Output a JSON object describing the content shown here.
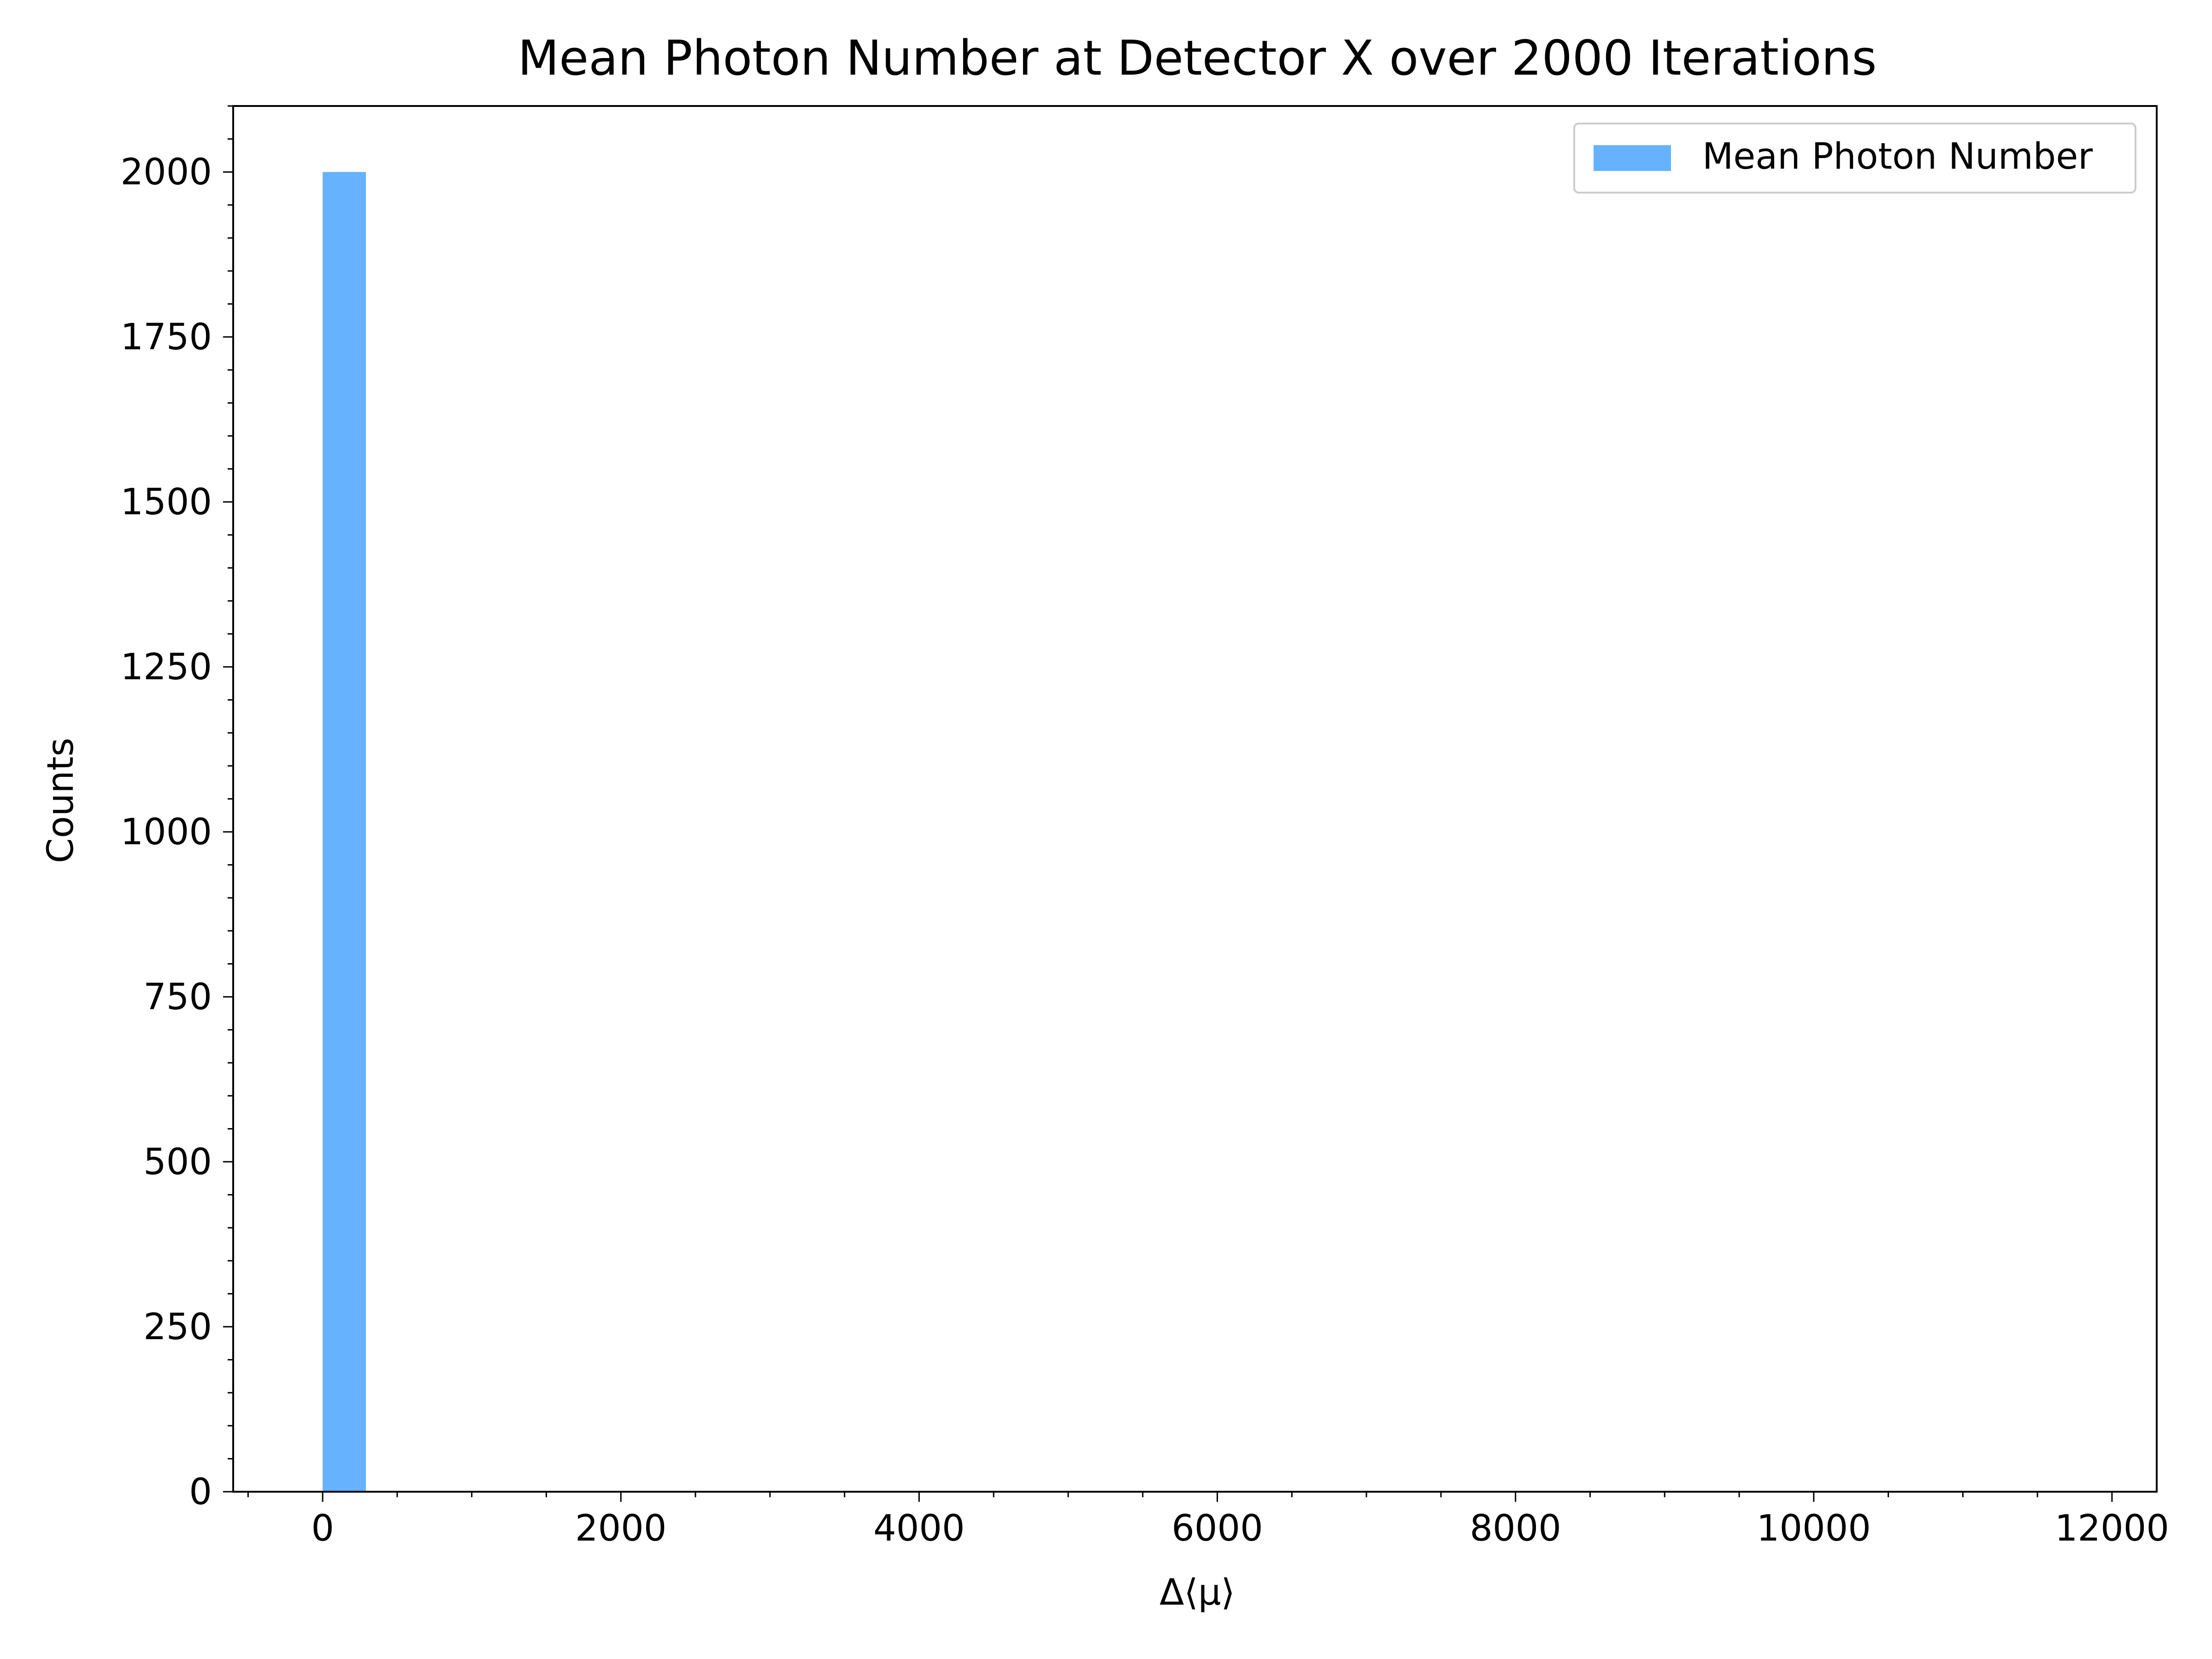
{
  "chart_data": {
    "type": "bar",
    "title": "Mean Photon Number at Detector X over 2000 Iterations",
    "xlabel": "Δ⟨μ⟩",
    "ylabel": "Counts",
    "xlim": [
      -600,
      12300
    ],
    "ylim": [
      0,
      2100
    ],
    "xticks": [
      0,
      2000,
      4000,
      6000,
      8000,
      10000,
      12000
    ],
    "xtick_labels": [
      "0",
      "2000",
      "4000",
      "6000",
      "8000",
      "10000",
      "12000"
    ],
    "yticks": [
      0,
      250,
      500,
      750,
      1000,
      1250,
      1500,
      1750,
      2000
    ],
    "ytick_labels": [
      "0",
      "250",
      "500",
      "750",
      "1000",
      "1250",
      "1500",
      "1750",
      "2000"
    ],
    "x_minor_step": 500,
    "y_minor_step": 50,
    "grid": false,
    "legend_position": "top-right",
    "series": [
      {
        "name": "Mean Photon Number",
        "color": "#66b2ff",
        "bins": [
          {
            "x0": 0,
            "x1": 290,
            "count": 2000
          }
        ]
      }
    ]
  }
}
